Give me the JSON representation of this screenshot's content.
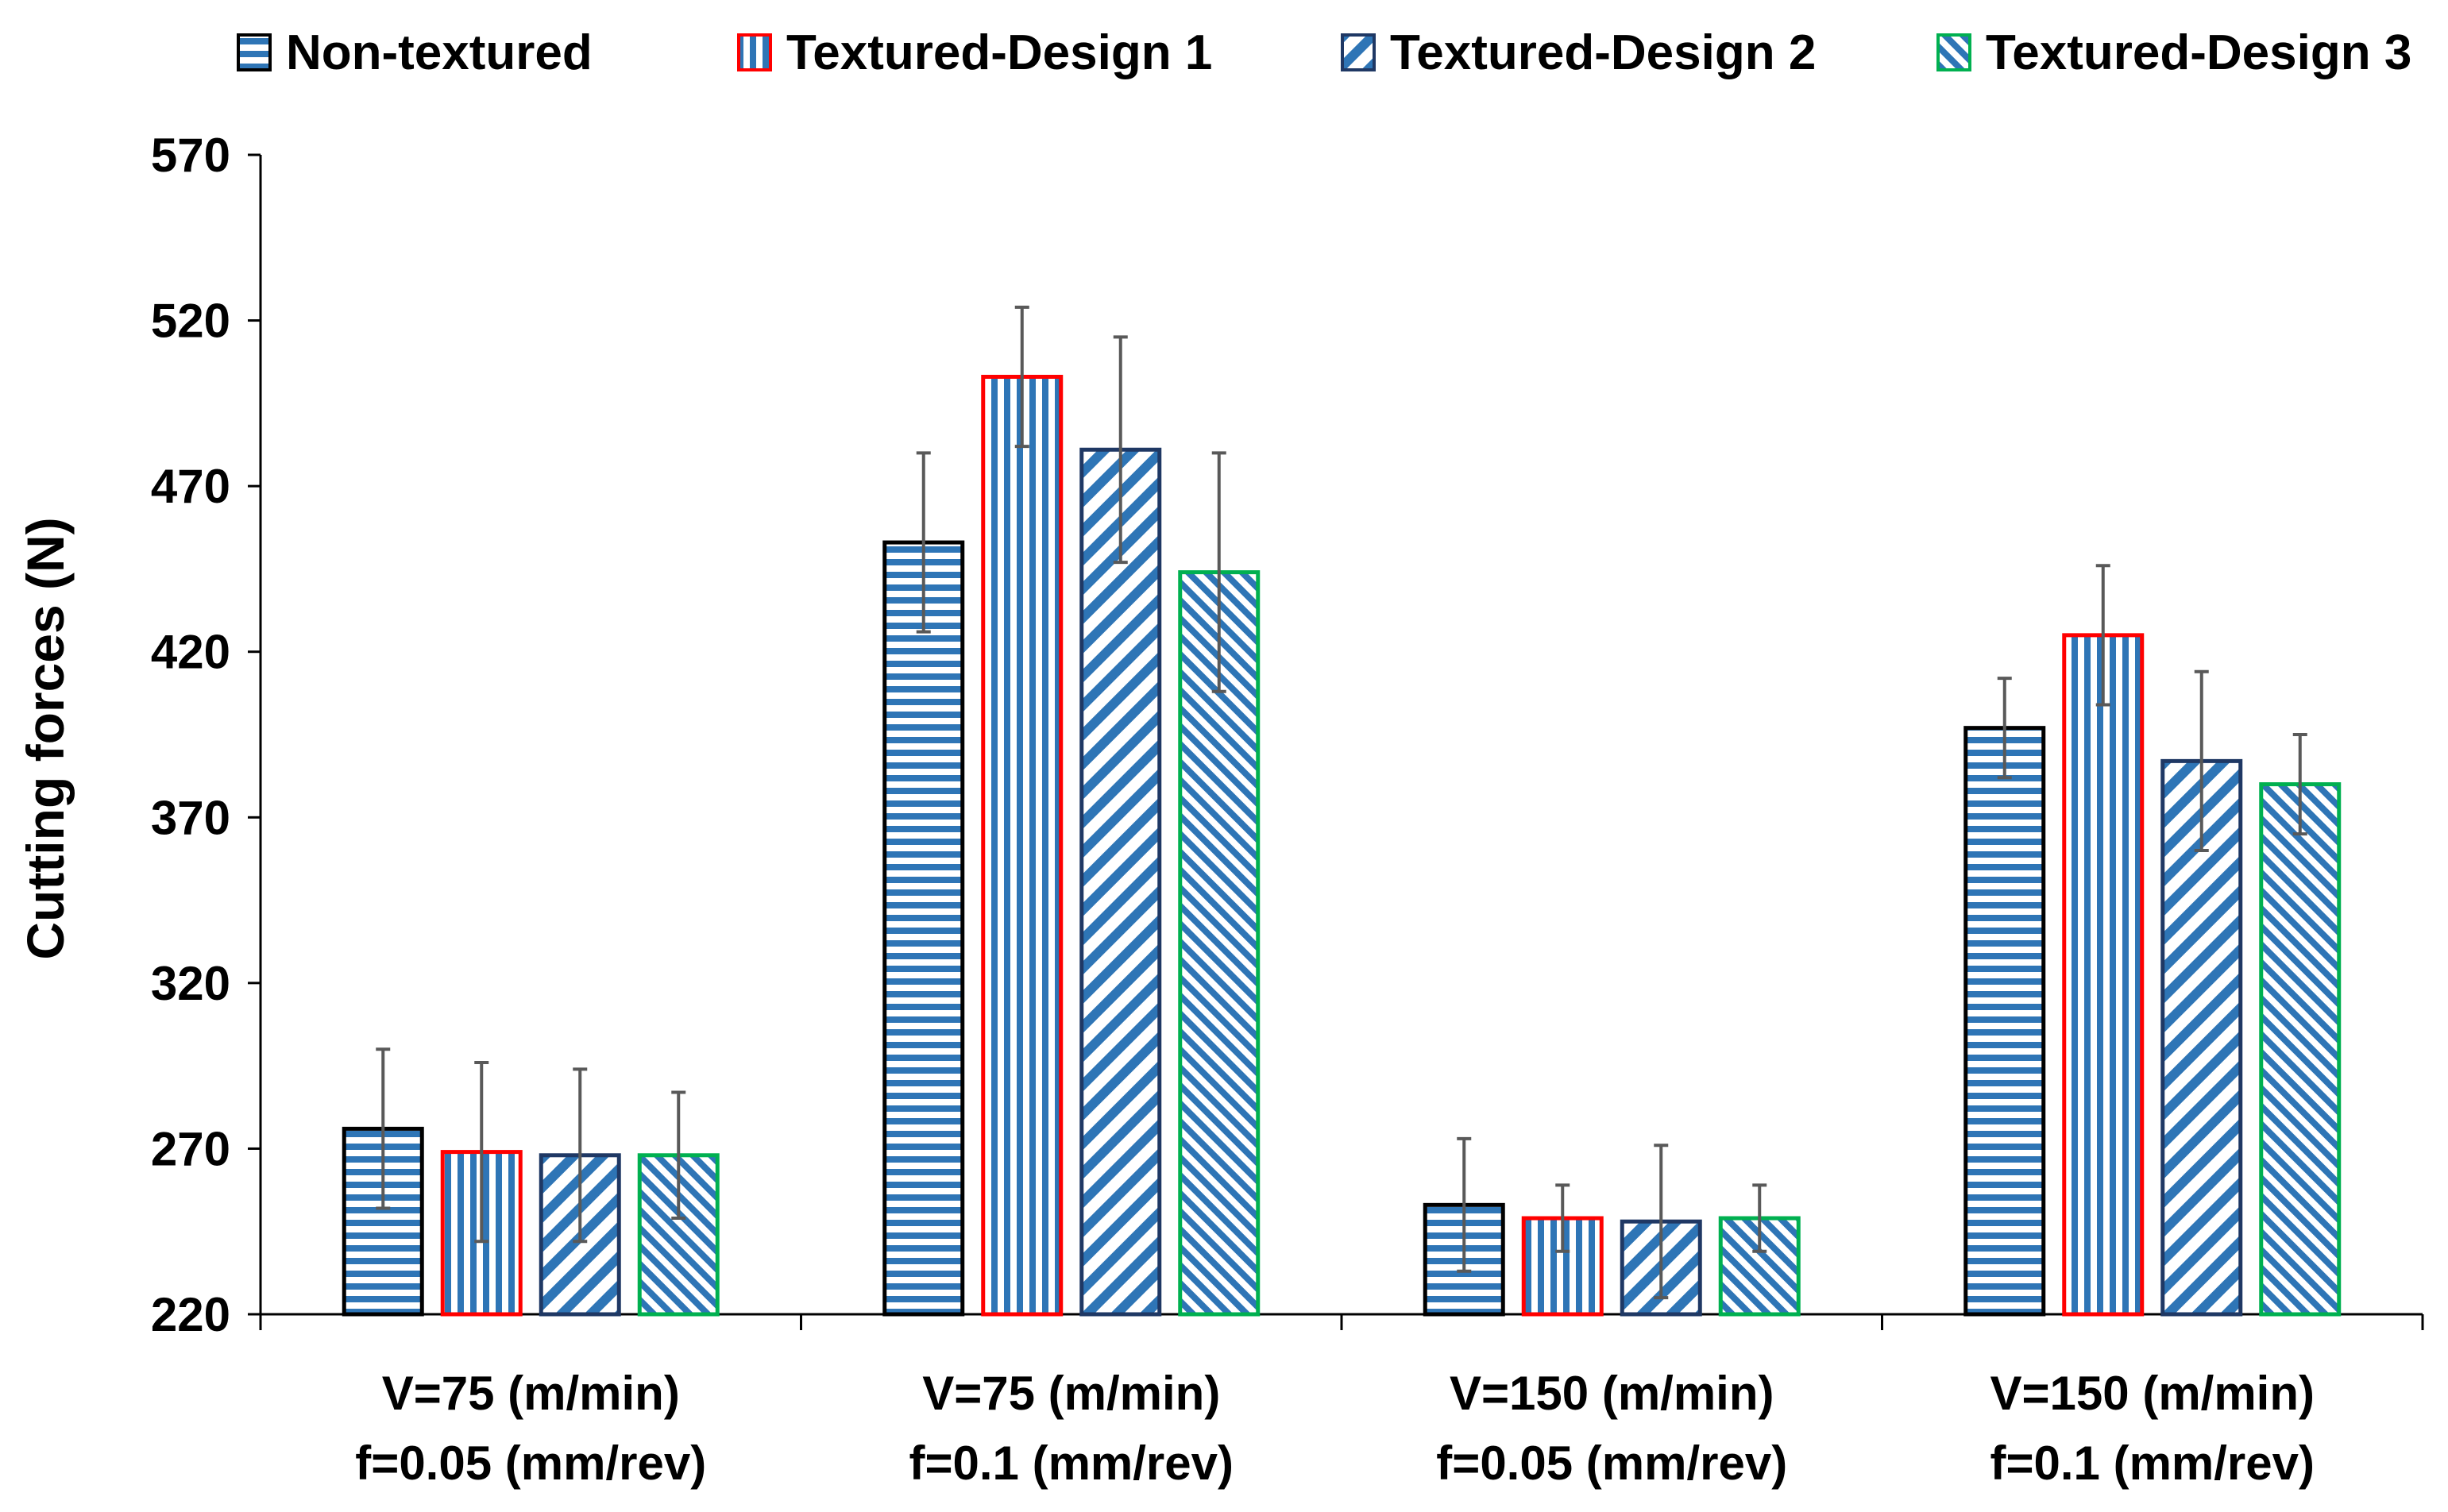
{
  "chart_data": {
    "type": "bar",
    "title": "",
    "xlabel": "",
    "ylabel": "Cutting forces (N)",
    "ylim": [
      220,
      570
    ],
    "yticks": [
      220,
      270,
      320,
      370,
      420,
      470,
      520,
      570
    ],
    "grid": false,
    "legend_position": "top",
    "categories": [
      [
        "V=75 (m/min)",
        "f=0.05 (mm/rev)"
      ],
      [
        "V=75 (m/min)",
        "f=0.1 (mm/rev)"
      ],
      [
        "V=150 (m/min)",
        "f=0.05 (mm/rev)"
      ],
      [
        "V=150 (m/min)",
        "f=0.1 (mm/rev)"
      ]
    ],
    "series": [
      {
        "name": "Non-textured",
        "pattern": "horizontal-stripes",
        "edge_color": "#000000",
        "fill_color": "#2E75B6",
        "values": [
          276,
          453,
          253,
          397
        ],
        "errors": [
          24,
          27,
          20,
          15
        ]
      },
      {
        "name": "Textured-Design 1",
        "pattern": "vertical-stripes",
        "edge_color": "#FF0000",
        "fill_color": "#2E75B6",
        "values": [
          269,
          503,
          249,
          425
        ],
        "errors": [
          27,
          21,
          10,
          21
        ]
      },
      {
        "name": "Textured-Design 2",
        "pattern": "wide-downward-diagonal",
        "edge_color": "#1F3864",
        "fill_color": "#2E75B6",
        "values": [
          268,
          481,
          248,
          387
        ],
        "errors": [
          26,
          34,
          23,
          27
        ]
      },
      {
        "name": "Textured-Design 3",
        "pattern": "upward-diagonal",
        "edge_color": "#00B050",
        "fill_color": "#2E75B6",
        "values": [
          268,
          444,
          249,
          380
        ],
        "errors": [
          19,
          36,
          10,
          15
        ]
      }
    ]
  }
}
